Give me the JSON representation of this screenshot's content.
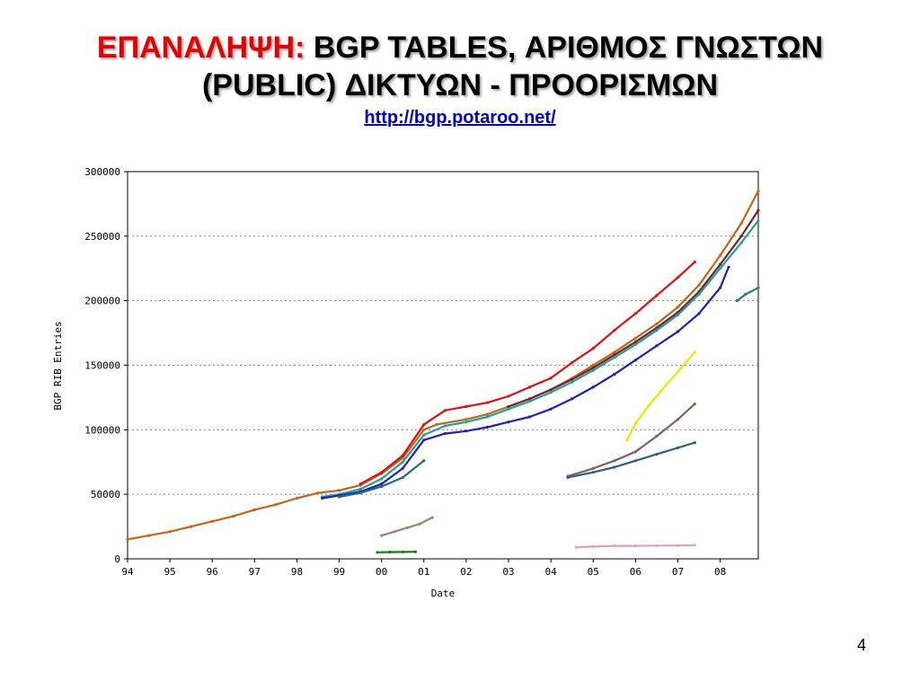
{
  "slide": {
    "title_accent": "ΕΠΑΝΑΛΗΨΗ:",
    "title_rest": "BGP TABLES, ΑΡΙΘΜΟΣ ΓΝΩΣΤΩΝ",
    "title_line2": "(PUBLIC) ΔΙΚΤΥΩΝ - ΠΡΟΟΡΙΣΜΩΝ",
    "link": "http://bgp.potaroo.net/",
    "page_number": "4",
    "colors": {
      "accent": "#e60000",
      "link": "#0000cc"
    }
  },
  "chart_data": {
    "type": "scatter",
    "xlabel": "Date",
    "ylabel": "BGP RIB Entries",
    "xlim": [
      1994.0,
      2008.9
    ],
    "ylim": [
      0,
      300000
    ],
    "x_ticks": [
      "94",
      "95",
      "96",
      "97",
      "98",
      "99",
      "00",
      "01",
      "02",
      "03",
      "04",
      "05",
      "06",
      "07",
      "08"
    ],
    "y_ticks": [
      "0",
      "50000",
      "100000",
      "150000",
      "200000",
      "250000",
      "300000"
    ],
    "grid": true,
    "series": [
      {
        "color": "#c86414",
        "x": [
          1994.0,
          1994.5,
          1995.0,
          1995.5,
          1996.0,
          1996.5,
          1997.0,
          1997.5,
          1998.0,
          1998.5,
          1999.0,
          1999.5,
          2000.0,
          2000.5,
          2001.0,
          2001.3,
          2002.0,
          2002.5,
          2003.0,
          2003.5,
          2004.0,
          2004.5,
          2005.0,
          2005.5,
          2006.0,
          2006.5,
          2007.0,
          2007.5,
          2008.0,
          2008.5,
          2008.9
        ],
        "y": [
          15000,
          18000,
          21000,
          25000,
          29000,
          33000,
          38000,
          42000,
          47000,
          51000,
          53000,
          57000,
          66000,
          78000,
          100000,
          104000,
          108000,
          112000,
          118000,
          124000,
          131000,
          140000,
          150000,
          160000,
          171000,
          182000,
          195000,
          212000,
          235000,
          260000,
          285000
        ]
      },
      {
        "color": "#e01010",
        "x": [
          1999.5,
          2000.0,
          2000.5,
          2001.0,
          2001.5,
          2002.0,
          2002.5,
          2003.0,
          2003.5,
          2004.0,
          2004.5,
          2005.0,
          2005.5,
          2006.0,
          2006.5,
          2007.0,
          2007.4
        ],
        "y": [
          58000,
          67000,
          80000,
          104000,
          115000,
          118000,
          121000,
          126000,
          133000,
          140000,
          152000,
          163000,
          177000,
          190000,
          204000,
          218000,
          230000
        ]
      },
      {
        "color": "#802020",
        "x": [
          2003.0,
          2003.5,
          2004.0,
          2004.5,
          2005.0,
          2005.5,
          2006.0,
          2006.5,
          2007.0,
          2007.5,
          2008.0,
          2008.5,
          2008.9
        ],
        "y": [
          118000,
          124000,
          131000,
          139000,
          148000,
          158000,
          168000,
          179000,
          191000,
          207000,
          228000,
          250000,
          270000
        ]
      },
      {
        "color": "#20a0a0",
        "x": [
          1998.6,
          1999.0,
          1999.5,
          2000.0,
          2000.5,
          2001.0,
          2001.5,
          2002.0,
          2002.5,
          2003.0,
          2003.5,
          2004.0,
          2004.5,
          2005.0,
          2005.5,
          2006.0,
          2006.5,
          2007.0,
          2007.5,
          2008.0,
          2008.5,
          2008.9
        ],
        "y": [
          48000,
          50000,
          54000,
          62000,
          75000,
          96000,
          103000,
          106000,
          110000,
          116000,
          122000,
          129000,
          137000,
          146000,
          156000,
          166000,
          177000,
          189000,
          205000,
          225000,
          245000,
          262000
        ]
      },
      {
        "color": "#2020c0",
        "x": [
          1998.6,
          1999.0,
          1999.5,
          2000.0,
          2000.5,
          2001.0,
          2001.5,
          2002.0,
          2002.5,
          2003.0,
          2003.5,
          2004.0,
          2004.5,
          2005.0,
          2005.5,
          2006.0,
          2006.5,
          2007.0,
          2007.5,
          2008.0,
          2008.2
        ],
        "y": [
          47000,
          49000,
          52000,
          58000,
          70000,
          92000,
          97000,
          99000,
          102000,
          106000,
          110000,
          116000,
          124000,
          133000,
          143000,
          154000,
          165000,
          176000,
          190000,
          210000,
          226000
        ]
      },
      {
        "color": "#207070",
        "x": [
          1999.0,
          1999.5,
          2000.0,
          2000.5,
          2001.0
        ],
        "y": [
          48000,
          51000,
          56000,
          63000,
          76000
        ]
      },
      {
        "color": "#e8e800",
        "x": [
          2005.8,
          2006.0,
          2006.3,
          2006.6,
          2007.0,
          2007.4
        ],
        "y": [
          92000,
          105000,
          118000,
          130000,
          145000,
          160000
        ]
      },
      {
        "color": "#806060",
        "x": [
          2004.4,
          2005.0,
          2005.5,
          2006.0,
          2006.5,
          2007.0,
          2007.4
        ],
        "y": [
          64000,
          70000,
          76000,
          83000,
          95000,
          108000,
          120000
        ]
      },
      {
        "color": "#306080",
        "x": [
          2004.4,
          2005.0,
          2005.5,
          2006.0,
          2006.5,
          2007.0,
          2007.4
        ],
        "y": [
          63000,
          67000,
          71000,
          76000,
          81000,
          86000,
          90000
        ]
      },
      {
        "color": "#208080",
        "x": [
          2008.4,
          2008.6,
          2008.9
        ],
        "y": [
          200000,
          205000,
          210000
        ]
      },
      {
        "color": "#e0a0c0",
        "x": [
          2004.6,
          2005.0,
          2005.5,
          2006.0,
          2006.5,
          2007.0,
          2007.4
        ],
        "y": [
          9000,
          9500,
          10000,
          10000,
          10200,
          10300,
          10500
        ]
      },
      {
        "color": "#a08070",
        "x": [
          2000.0,
          2000.3,
          2000.6,
          2000.9,
          2001.2
        ],
        "y": [
          18000,
          21000,
          24000,
          27000,
          32000
        ]
      },
      {
        "color": "#108010",
        "x": [
          1999.9,
          2000.2,
          2000.5,
          2000.8
        ],
        "y": [
          5000,
          5200,
          5300,
          5400
        ]
      }
    ]
  }
}
